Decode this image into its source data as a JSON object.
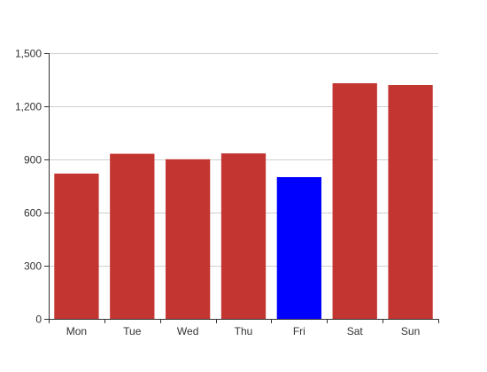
{
  "chart_data": {
    "type": "bar",
    "title": "",
    "xlabel": "",
    "ylabel": "",
    "categories": [
      "Mon",
      "Tue",
      "Wed",
      "Thu",
      "Fri",
      "Sat",
      "Sun"
    ],
    "values": [
      820,
      932,
      901,
      934,
      800,
      1330,
      1320
    ],
    "ylim": [
      0,
      1500
    ],
    "yticks": [
      0,
      300,
      600,
      900,
      1200,
      1500
    ],
    "ytick_labels": [
      "0",
      "300",
      "600",
      "900",
      "1,200",
      "1,500"
    ],
    "grid": true,
    "legend": "none",
    "colors": {
      "default_bar": "#c23531",
      "highlight_bar": "#0000ff",
      "highlight_category": "Fri",
      "grid": "#cfcfcf",
      "axis": "#333333",
      "text": "#333333"
    }
  }
}
